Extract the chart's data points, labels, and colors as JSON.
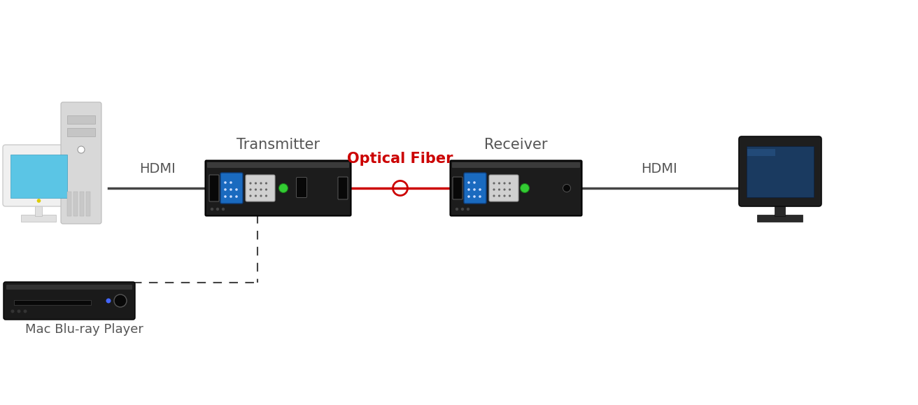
{
  "bg_color": "#ffffff",
  "transmitter_label": "Transmitter",
  "receiver_label": "Receiver",
  "optical_fiber_label": "Optical Fiber",
  "hdmi_label_left": "HDMI",
  "hdmi_label_right": "HDMI",
  "blu_ray_label": "Mac Blu-ray Player",
  "text_color_dark": "#555555",
  "text_color_red": "#cc0000",
  "line_color_black": "#444444",
  "line_color_red": "#cc0000",
  "box_color_dark": "#1a1a1a",
  "fiber_connector_color": "#cc0000",
  "label_fontsize": 15,
  "hdmi_fontsize": 14
}
